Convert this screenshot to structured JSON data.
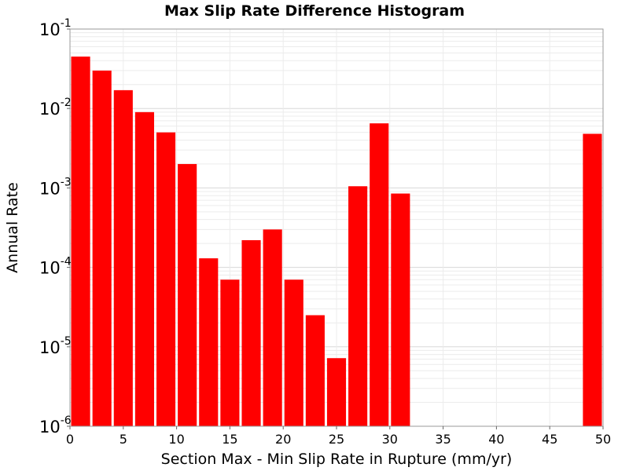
{
  "chart_data": {
    "type": "bar",
    "title": "Max Slip Rate Difference Histogram",
    "xlabel": "Section Max - Min Slip Rate in Rupture (mm/yr)",
    "ylabel": "Annual Rate",
    "xlim": [
      0,
      50
    ],
    "ylim": [
      1e-06,
      0.1
    ],
    "yscale": "log",
    "grid": true,
    "legend": "none",
    "bar_color": "#ff0000",
    "bin_width": 2,
    "x": [
      1,
      3,
      5,
      7,
      9,
      11,
      13,
      15,
      17,
      19,
      21,
      23,
      25,
      27,
      29,
      31,
      49
    ],
    "values": [
      0.045,
      0.03,
      0.017,
      0.009,
      0.005,
      0.002,
      0.00013,
      7e-05,
      0.00022,
      0.0003,
      7e-05,
      2.5e-05,
      7.2e-06,
      0.00105,
      0.0065,
      0.00085,
      0.0048
    ],
    "xticks": [
      "0",
      "5",
      "10",
      "15",
      "20",
      "25",
      "30",
      "35",
      "40",
      "45",
      "50"
    ],
    "yticks": [
      {
        "base": "10",
        "exp": "-1"
      },
      {
        "base": "10",
        "exp": "-2"
      },
      {
        "base": "10",
        "exp": "-3"
      },
      {
        "base": "10",
        "exp": "-4"
      },
      {
        "base": "10",
        "exp": "-5"
      },
      {
        "base": "10",
        "exp": "-6"
      }
    ]
  }
}
